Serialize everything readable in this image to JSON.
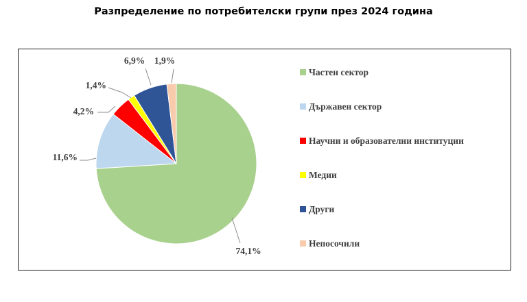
{
  "title": "Разпределение по потребителски групи през 2024 година",
  "chart_data": {
    "type": "pie",
    "title": "Разпределение по потребителски групи през 2024 година",
    "start_angle_deg": 0,
    "direction": "clockwise",
    "legend_position": "right",
    "slices": [
      {
        "label": "Частен сектор",
        "value": 74.1,
        "value_label": "74,1%",
        "color": "#A9D18E"
      },
      {
        "label": "Държавен сектор",
        "value": 11.6,
        "value_label": "11,6%",
        "color": "#BDD7EE"
      },
      {
        "label": "Научни и образователни институции",
        "value": 4.2,
        "value_label": "4,2%",
        "color": "#FF0000"
      },
      {
        "label": "Медии",
        "value": 1.4,
        "value_label": "1,4%",
        "color": "#FFFF00"
      },
      {
        "label": "Други",
        "value": 6.9,
        "value_label": "6,9%",
        "color": "#2F5597"
      },
      {
        "label": "Непосочили",
        "value": 1.9,
        "value_label": "1,9%",
        "color": "#F8CBAD"
      }
    ]
  }
}
